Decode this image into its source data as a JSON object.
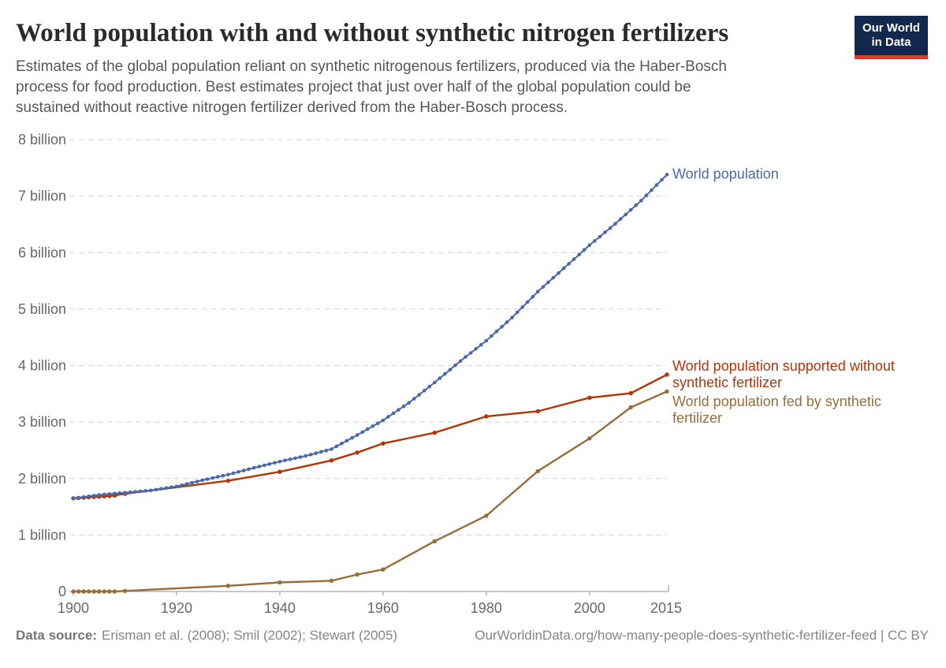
{
  "header": {
    "title": "World population with and without synthetic nitrogen fertilizers",
    "subtitle": "Estimates of the global population reliant on synthetic nitrogenous fertilizers, produced via the Haber-Bosch\nprocess for food production. Best estimates project that just over half of the global population could be\nsustained without reactive nitrogen fertilizer derived from the Haber-Bosch process.",
    "logo": {
      "line1": "Our World",
      "line2": "in Data",
      "bg_color": "#12294d",
      "bar_color": "#d93a2d",
      "text_color": "#ffffff"
    }
  },
  "footer": {
    "source_label": "Data source:",
    "source_text": "Erisman et al. (2008); Smil (2002); Stewart (2005)",
    "link_text": "OurWorldinData.org/how-many-people-does-synthetic-fertilizer-feed | CC BY"
  },
  "chart_data": {
    "type": "line",
    "title": "World population with and without synthetic nitrogen fertilizers",
    "unit": "billion people",
    "grid": "dashed horizontal gridlines",
    "legend_position": "labels at right end of each line",
    "style": {
      "gridline_color": "#dcdcdc",
      "axis_line_color": "#a8a8a8",
      "axis_text_color": "#676767"
    },
    "x_axis": {
      "min": 1900,
      "max": 2015,
      "ticks": [
        1900,
        1920,
        1940,
        1960,
        1980,
        2000,
        2015
      ]
    },
    "y_axis": {
      "min": 0,
      "max": 8,
      "ticks": [
        {
          "value": 0,
          "label": "0"
        },
        {
          "value": 1,
          "label": "1 billion"
        },
        {
          "value": 2,
          "label": "2 billion"
        },
        {
          "value": 3,
          "label": "3 billion"
        },
        {
          "value": 4,
          "label": "4 billion"
        },
        {
          "value": 5,
          "label": "5 billion"
        },
        {
          "value": 6,
          "label": "6 billion"
        },
        {
          "value": 7,
          "label": "7 billion"
        },
        {
          "value": 8,
          "label": "8 billion"
        }
      ]
    },
    "series": [
      {
        "id": "world-population",
        "name": "World population",
        "label": "World population",
        "color": "#4a69a8",
        "interpolate_annual": true,
        "points": [
          [
            1900,
            1.65
          ],
          [
            1905,
            1.71
          ],
          [
            1910,
            1.75
          ],
          [
            1915,
            1.79
          ],
          [
            1920,
            1.86
          ],
          [
            1925,
            1.97
          ],
          [
            1930,
            2.07
          ],
          [
            1935,
            2.19
          ],
          [
            1940,
            2.3
          ],
          [
            1945,
            2.4
          ],
          [
            1950,
            2.52
          ],
          [
            1955,
            2.77
          ],
          [
            1960,
            3.03
          ],
          [
            1965,
            3.34
          ],
          [
            1970,
            3.7
          ],
          [
            1975,
            4.08
          ],
          [
            1980,
            4.44
          ],
          [
            1985,
            4.85
          ],
          [
            1990,
            5.31
          ],
          [
            1995,
            5.72
          ],
          [
            2000,
            6.13
          ],
          [
            2005,
            6.51
          ],
          [
            2010,
            6.92
          ],
          [
            2015,
            7.38
          ]
        ]
      },
      {
        "id": "supported-without-fertilizer",
        "name": "World population supported without synthetic fertilizer",
        "label": "World population supported without\nsynthetic fertilizer",
        "color": "#b13507",
        "interpolate_annual": false,
        "points": [
          [
            1900,
            1.65
          ],
          [
            1901,
            1.656
          ],
          [
            1902,
            1.662
          ],
          [
            1903,
            1.668
          ],
          [
            1904,
            1.674
          ],
          [
            1905,
            1.68
          ],
          [
            1906,
            1.686
          ],
          [
            1907,
            1.692
          ],
          [
            1908,
            1.7
          ],
          [
            1910,
            1.73
          ],
          [
            1930,
            1.96
          ],
          [
            1940,
            2.12
          ],
          [
            1950,
            2.32
          ],
          [
            1955,
            2.46
          ],
          [
            1960,
            2.62
          ],
          [
            1970,
            2.81
          ],
          [
            1980,
            3.1
          ],
          [
            1990,
            3.19
          ],
          [
            2000,
            3.43
          ],
          [
            2008,
            3.51
          ],
          [
            2015,
            3.84
          ]
        ]
      },
      {
        "id": "fed-by-fertilizer",
        "name": "World population fed by synthetic fertilizer",
        "label": "World population fed by synthetic\nfertilizer",
        "color": "#996d39",
        "interpolate_annual": false,
        "points": [
          [
            1900,
            0
          ],
          [
            1901,
            0
          ],
          [
            1902,
            0
          ],
          [
            1903,
            0
          ],
          [
            1904,
            0
          ],
          [
            1905,
            0
          ],
          [
            1906,
            0
          ],
          [
            1907,
            0
          ],
          [
            1908,
            0
          ],
          [
            1910,
            0.01
          ],
          [
            1930,
            0.1
          ],
          [
            1940,
            0.16
          ],
          [
            1950,
            0.19
          ],
          [
            1955,
            0.3
          ],
          [
            1960,
            0.39
          ],
          [
            1970,
            0.89
          ],
          [
            1980,
            1.34
          ],
          [
            1990,
            2.13
          ],
          [
            2000,
            2.71
          ],
          [
            2008,
            3.26
          ],
          [
            2015,
            3.54
          ]
        ]
      }
    ]
  }
}
